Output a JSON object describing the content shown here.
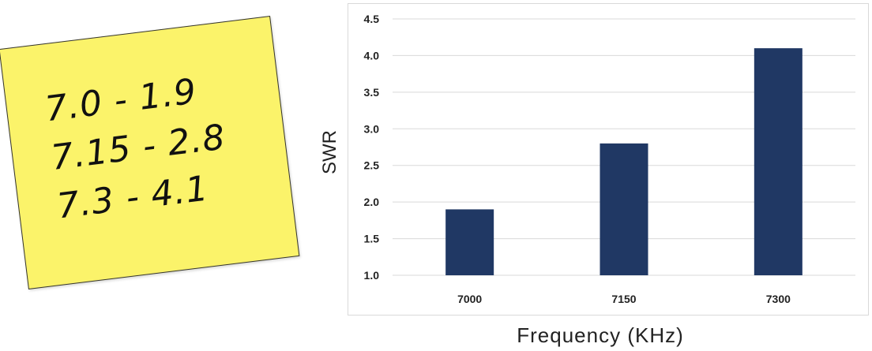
{
  "note": {
    "lines": [
      "7.0 - 1.9",
      "7.15 - 2.8",
      "7.3 - 4.1"
    ],
    "color": "#fbf36a"
  },
  "chart_data": {
    "type": "bar",
    "categories": [
      "7000",
      "7150",
      "7300"
    ],
    "values": [
      1.9,
      2.8,
      4.1
    ],
    "title": "",
    "xlabel": "Frequency  (KHz)",
    "ylabel": "SWR",
    "ylim": [
      1.0,
      4.5
    ],
    "yticks": [
      "1.0",
      "1.5",
      "2.0",
      "2.5",
      "3.0",
      "3.5",
      "4.0",
      "4.5"
    ],
    "grid": true,
    "bar_color": "#203864",
    "grid_color": "#d9d9d9"
  }
}
